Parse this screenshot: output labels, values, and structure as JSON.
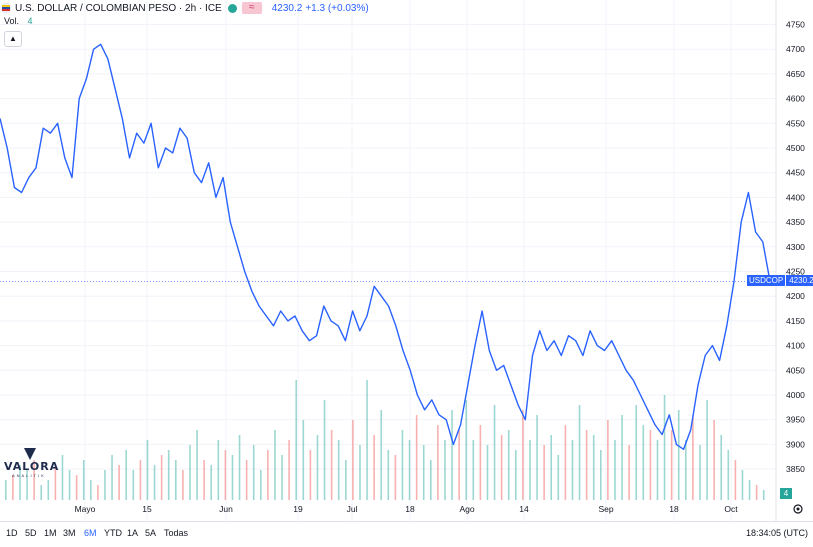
{
  "legend": {
    "title": "U.S. DOLLAR / COLOMBIAN PESO · 2h · ICE",
    "compare_label": "≈",
    "price": "4230.2",
    "change": "+1.3 (+0.03%)",
    "vol_label": "Vol.",
    "vol_value": "4"
  },
  "price_tag": {
    "symbol": "USDCOP",
    "value": "4230.2"
  },
  "volume_badge": "4",
  "logo": {
    "name": "VALORA",
    "tagline": "ANALITIK"
  },
  "bottom_bar": {
    "ranges": [
      "1D",
      "5D",
      "1M",
      "3M",
      "6M",
      "YTD",
      "1A",
      "5A",
      "Todas"
    ],
    "active": "6M",
    "clock": "18:34:05 (UTC)"
  },
  "colors": {
    "line": "#2962ff",
    "up": "#26a69a",
    "down": "#ef5350",
    "grid": "#f0f3fa"
  },
  "chart_data": {
    "type": "line",
    "ylim": [
      3800,
      4750
    ],
    "y_ticks": [
      3850,
      3900,
      3950,
      4000,
      4050,
      4100,
      4150,
      4200,
      4250,
      4300,
      4350,
      4400,
      4450,
      4500,
      4550,
      4600,
      4650,
      4700,
      4750
    ],
    "x_tick_labels": [
      "Mayo",
      "15",
      "Jun",
      "19",
      "Jul",
      "18",
      "Ago",
      "14",
      "Sep",
      "18",
      "Oct"
    ],
    "last_price": 4230.2,
    "series": [
      {
        "values": [
          4560,
          4500,
          4420,
          4410,
          4440,
          4460,
          4540,
          4530,
          4550,
          4480,
          4440,
          4600,
          4640,
          4700,
          4710,
          4680,
          4620,
          4560,
          4480,
          4530,
          4510,
          4550,
          4460,
          4500,
          4490,
          4540,
          4520,
          4450,
          4430,
          4470,
          4400,
          4440,
          4350,
          4300,
          4250,
          4210,
          4180,
          4160,
          4140,
          4170,
          4150,
          4160,
          4130,
          4110,
          4120,
          4180,
          4150,
          4140,
          4110,
          4170,
          4130,
          4160,
          4220,
          4200,
          4180,
          4140,
          4090,
          4050,
          4000,
          3970,
          3990,
          3960,
          3950,
          3900,
          3940,
          4020,
          4100,
          4170,
          4090,
          4050,
          4060,
          4020,
          3980,
          3950,
          4080,
          4130,
          4090,
          4110,
          4080,
          4120,
          4110,
          4080,
          4130,
          4100,
          4090,
          4110,
          4080,
          4050,
          4030,
          4000,
          3970,
          3940,
          3920,
          3960,
          3900,
          3890,
          3930,
          4020,
          4080,
          4100,
          4070,
          4140,
          4230,
          4350,
          4410,
          4330,
          4310,
          4230.2
        ]
      }
    ],
    "volume": {
      "values": [
        20,
        25,
        35,
        30,
        40,
        15,
        20,
        35,
        45,
        30,
        25,
        40,
        20,
        15,
        30,
        45,
        35,
        50,
        30,
        40,
        60,
        35,
        45,
        50,
        40,
        30,
        55,
        70,
        40,
        35,
        60,
        50,
        45,
        65,
        40,
        55,
        30,
        50,
        70,
        45,
        60,
        120,
        80,
        50,
        65,
        100,
        70,
        60,
        40,
        80,
        55,
        120,
        65,
        90,
        50,
        45,
        70,
        60,
        85,
        55,
        40,
        75,
        60,
        90,
        70,
        100,
        60,
        75,
        55,
        95,
        65,
        70,
        50,
        90,
        60,
        85,
        55,
        65,
        45,
        75,
        60,
        95,
        70,
        65,
        50,
        80,
        60,
        85,
        55,
        95,
        75,
        70,
        60,
        105,
        70,
        90,
        60,
        85,
        55,
        100,
        80,
        65,
        50,
        40,
        30,
        20,
        15,
        10
      ],
      "ymax": 130
    }
  }
}
